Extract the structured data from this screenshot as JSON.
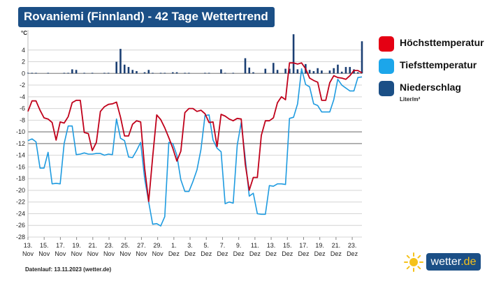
{
  "title": "Rovaniemi (Finnland) - 42 Tage Wettertrend",
  "y_unit": "°C",
  "legend": {
    "high": "Höchsttemperatur",
    "low": "Tiefsttemperatur",
    "precip": "Niederschlag",
    "precip_unit": "Liter/m²"
  },
  "footnote": "Datenlauf: 13.11.2023 (wetter.de)",
  "brand": {
    "name": "wetter",
    "suffix": ".de"
  },
  "colors": {
    "high": "#c0001a",
    "low": "#1e9be0",
    "precip": "#1b3f73",
    "title_bg": "#1b4f86",
    "legend_high": "#e50013",
    "legend_low": "#1ca6ea",
    "legend_precip": "#1b4f86"
  },
  "chart_data": {
    "type": "line",
    "ylim": [
      -28,
      6
    ],
    "yticks": [
      4,
      2,
      0,
      -2,
      -4,
      -6,
      -8,
      -10,
      -12,
      -14,
      -16,
      -18,
      -20,
      -22,
      -24,
      -26,
      -28
    ],
    "x_labels": [
      {
        "day": "13.",
        "month": "Nov"
      },
      {
        "day": "15.",
        "month": "Nov"
      },
      {
        "day": "17.",
        "month": "Nov"
      },
      {
        "day": "19.",
        "month": "Nov"
      },
      {
        "day": "21.",
        "month": "Nov"
      },
      {
        "day": "23.",
        "month": "Nov"
      },
      {
        "day": "25.",
        "month": "Nov"
      },
      {
        "day": "27.",
        "month": "Nov"
      },
      {
        "day": "29.",
        "month": "Nov"
      },
      {
        "day": "1.",
        "month": "Dez"
      },
      {
        "day": "3.",
        "month": "Dez"
      },
      {
        "day": "5.",
        "month": "Dez"
      },
      {
        "day": "7.",
        "month": "Dez"
      },
      {
        "day": "9.",
        "month": "Dez"
      },
      {
        "day": "11.",
        "month": "Dez"
      },
      {
        "day": "13.",
        "month": "Dez"
      },
      {
        "day": "15.",
        "month": "Dez"
      },
      {
        "day": "17.",
        "month": "Dez"
      },
      {
        "day": "19.",
        "month": "Dez"
      },
      {
        "day": "21.",
        "month": "Dez"
      },
      {
        "day": "23.",
        "month": "Dez"
      }
    ],
    "series": [
      {
        "name": "Höchsttemperatur",
        "values": [
          -6.5,
          -4.7,
          -4.7,
          -6.3,
          -7.6,
          -7.8,
          -8.4,
          -11.4,
          -8.3,
          -8.5,
          -7.4,
          -5.0,
          -4.6,
          -4.6,
          -10.1,
          -10.3,
          -13.2,
          -11.8,
          -6.5,
          -5.7,
          -5.3,
          -5.2,
          -4.9,
          -7.5,
          -10.7,
          -10.7,
          -8.7,
          -8.1,
          -8.3,
          -16.2,
          -21.9,
          -14.3,
          -7.1,
          -7.9,
          -9.3,
          -11.0,
          -12.8,
          -15.0,
          -13.3,
          -6.7,
          -6.0,
          -6.0,
          -6.5,
          -6.3,
          -6.9,
          -8.4,
          -8.3,
          -12.5,
          -7.0,
          -7.3,
          -7.8,
          -8.1,
          -7.7,
          -7.8,
          -15.5,
          -20.0,
          -17.8,
          -17.8,
          -10.6,
          -8.1,
          -8.1,
          -7.6,
          -5.0,
          -4.0,
          -4.5,
          1.8,
          1.8,
          1.6,
          1.8,
          0.8,
          -0.8,
          -1.2,
          -1.5,
          -4.6,
          -4.6,
          -1.6,
          -0.4,
          -0.7,
          -0.8,
          -1.0,
          -0.4,
          0.5,
          0.5,
          0.1
        ]
      },
      {
        "name": "Tiefsttemperatur",
        "values": [
          -11.5,
          -11.2,
          -11.7,
          -16.2,
          -16.2,
          -13.5,
          -18.9,
          -18.8,
          -18.9,
          -12.0,
          -9.0,
          -9.0,
          -13.9,
          -13.8,
          -13.6,
          -13.8,
          -13.8,
          -13.7,
          -13.7,
          -14.0,
          -13.8,
          -13.9,
          -7.8,
          -11.1,
          -11.5,
          -14.3,
          -14.4,
          -13.2,
          -11.8,
          -18.0,
          -22.0,
          -25.8,
          -25.7,
          -26.1,
          -24.5,
          -11.8,
          -12.0,
          -14.0,
          -18.2,
          -20.2,
          -20.2,
          -18.5,
          -16.5,
          -13.0,
          -7.2,
          -7.1,
          -11.4,
          -12.8,
          -13.4,
          -22.3,
          -22.0,
          -22.2,
          -12.3,
          -8.4,
          -14.5,
          -21.0,
          -20.5,
          -24.0,
          -24.1,
          -24.1,
          -19.2,
          -19.3,
          -18.9,
          -18.9,
          -19.0,
          -7.7,
          -7.5,
          -5.2,
          0.8,
          -1.9,
          -2.3,
          -5.2,
          -5.5,
          -6.6,
          -6.6,
          -6.6,
          -4.5,
          -1.0,
          -2.0,
          -2.5,
          -3.0,
          -3.0,
          -0.7,
          -0.6
        ]
      },
      {
        "name": "Niederschlag",
        "values": [
          0.1,
          0.1,
          0.1,
          0.0,
          0.0,
          0.1,
          0.0,
          0.0,
          0.0,
          0.1,
          0.1,
          0.7,
          0.6,
          0.0,
          0.1,
          0.0,
          0.1,
          0.0,
          0.0,
          0.1,
          0.1,
          0.0,
          2.0,
          4.2,
          1.5,
          1.1,
          0.6,
          0.4,
          0.0,
          0.2,
          0.6,
          0.1,
          0.0,
          0.1,
          0.1,
          0.0,
          0.2,
          0.2,
          0.0,
          0.1,
          0.1,
          0.0,
          0.0,
          0.0,
          0.1,
          0.1,
          0.0,
          0.0,
          0.7,
          0.0,
          0.0,
          0.1,
          0.0,
          0.0,
          2.6,
          1.0,
          0.2,
          0.0,
          0.0,
          0.5,
          0.0,
          1.8,
          0.6,
          0.0,
          0.0,
          0.0,
          0.0,
          0.2,
          0.0,
          0.0,
          0.1,
          0.5,
          1.0,
          0.0,
          0.1,
          3.4,
          2.1,
          0.5,
          0.5,
          1.0,
          0.9,
          0.6,
          0.6,
          0.1
        ]
      }
    ],
    "precip_extra": [
      {
        "index": 49,
        "value": 0.1
      },
      {
        "index": 59,
        "value": 0.8
      },
      {
        "index": 64,
        "value": 0.8
      },
      {
        "index": 65,
        "value": 0.8
      },
      {
        "index": 66,
        "value": 6.7
      },
      {
        "index": 67,
        "value": 0.7
      },
      {
        "index": 68,
        "value": 0.4
      },
      {
        "index": 69,
        "value": 1.6
      },
      {
        "index": 70,
        "value": 0.6
      },
      {
        "index": 71,
        "value": 0.4
      },
      {
        "index": 72,
        "value": 0.9
      },
      {
        "index": 73,
        "value": 0.5
      },
      {
        "index": 74,
        "value": 0.0
      },
      {
        "index": 75,
        "value": 0.5
      },
      {
        "index": 76,
        "value": 0.9
      },
      {
        "index": 77,
        "value": 1.5
      },
      {
        "index": 78,
        "value": 0.3
      },
      {
        "index": 79,
        "value": 1.1
      },
      {
        "index": 80,
        "value": 1.1
      },
      {
        "index": 81,
        "value": 0.7
      },
      {
        "index": 82,
        "value": 0.2
      },
      {
        "index": 83,
        "value": 5.5
      }
    ],
    "grid": true,
    "legend_position": "right"
  }
}
